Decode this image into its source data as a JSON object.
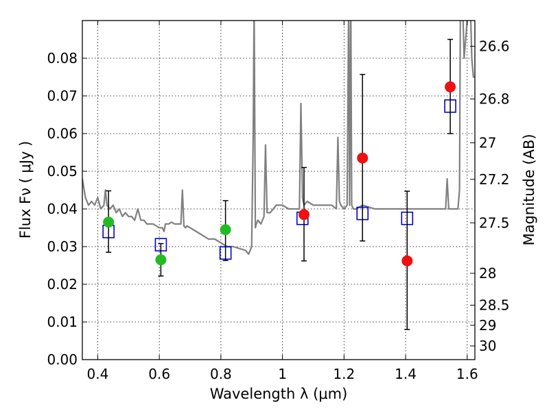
{
  "chart_data": {
    "type": "scatter",
    "xlabel": "Wavelength  λ (μm)",
    "ylabel": "Flux  Fν  ( μJy )",
    "ylabel_right": "Magnitude (AB)",
    "xlim": [
      0.35,
      1.625
    ],
    "ylim": [
      0.0,
      0.09
    ],
    "grid": true,
    "x_ticks": [
      0.4,
      0.6,
      0.8,
      1.0,
      1.2,
      1.4,
      1.6
    ],
    "x_tick_labels": [
      "0.4",
      "0.6",
      "0.8",
      "1",
      "1.2",
      "1.4",
      "1.6"
    ],
    "y_ticks": [
      0.0,
      0.01,
      0.02,
      0.03,
      0.04,
      0.05,
      0.06,
      0.07,
      0.08
    ],
    "y_tick_labels": [
      "0.00",
      "0.01",
      "0.02",
      "0.03",
      "0.04",
      "0.05",
      "0.06",
      "0.07",
      "0.08"
    ],
    "mag_ticks": [
      26.6,
      26.8,
      27.0,
      27.2,
      27.5,
      28.0,
      28.5,
      29.0,
      30.0
    ],
    "mag_tick_labels": [
      "26.6",
      "26.8",
      "27",
      "27.2",
      "27.5",
      "28",
      "28.5",
      "29",
      "30"
    ],
    "series": [
      {
        "name": "spectrum",
        "kind": "line",
        "color": "#808080",
        "x": [
          0.35,
          0.36,
          0.37,
          0.38,
          0.39,
          0.4,
          0.41,
          0.42,
          0.425,
          0.43,
          0.44,
          0.45,
          0.46,
          0.47,
          0.48,
          0.49,
          0.5,
          0.51,
          0.52,
          0.53,
          0.54,
          0.55,
          0.56,
          0.57,
          0.58,
          0.59,
          0.6,
          0.61,
          0.615,
          0.62,
          0.63,
          0.64,
          0.65,
          0.66,
          0.67,
          0.675,
          0.68,
          0.685,
          0.69,
          0.7,
          0.72,
          0.74,
          0.76,
          0.78,
          0.8,
          0.82,
          0.84,
          0.86,
          0.88,
          0.89,
          0.9,
          0.905,
          0.908,
          0.912,
          0.915,
          0.92,
          0.93,
          0.94,
          0.945,
          0.95,
          0.96,
          0.98,
          1.0,
          1.02,
          1.04,
          1.055,
          1.06,
          1.065,
          1.07,
          1.08,
          1.1,
          1.12,
          1.14,
          1.16,
          1.175,
          1.18,
          1.185,
          1.19,
          1.2,
          1.21,
          1.215,
          1.218,
          1.222,
          1.225,
          1.23,
          1.24,
          1.26,
          1.3,
          1.35,
          1.4,
          1.45,
          1.5,
          1.52,
          1.53,
          1.535,
          1.54,
          1.55,
          1.56,
          1.57,
          1.575,
          1.578,
          1.585,
          1.59,
          1.6,
          1.61,
          1.615,
          1.62,
          1.625
        ],
        "y": [
          0.048,
          0.043,
          0.041,
          0.042,
          0.041,
          0.043,
          0.04,
          0.041,
          0.045,
          0.041,
          0.04,
          0.041,
          0.039,
          0.04,
          0.038,
          0.039,
          0.038,
          0.038,
          0.037,
          0.04,
          0.037,
          0.037,
          0.036,
          0.036,
          0.036,
          0.0355,
          0.035,
          0.035,
          0.034,
          0.036,
          0.036,
          0.0365,
          0.036,
          0.036,
          0.036,
          0.045,
          0.0355,
          0.035,
          0.0355,
          0.035,
          0.034,
          0.033,
          0.032,
          0.032,
          0.031,
          0.03,
          0.03,
          0.0295,
          0.029,
          0.028,
          0.03,
          0.06,
          0.095,
          0.035,
          0.036,
          0.037,
          0.036,
          0.038,
          0.057,
          0.039,
          0.039,
          0.041,
          0.041,
          0.04,
          0.04,
          0.04,
          0.068,
          0.043,
          0.041,
          0.042,
          0.041,
          0.041,
          0.041,
          0.041,
          0.04,
          0.059,
          0.042,
          0.041,
          0.04,
          0.041,
          0.095,
          0.041,
          0.095,
          0.041,
          0.04,
          0.04,
          0.041,
          0.04,
          0.04,
          0.04,
          0.04,
          0.04,
          0.04,
          0.04,
          0.048,
          0.04,
          0.04,
          0.04,
          0.04,
          0.045,
          0.095,
          0.095,
          0.08,
          0.09,
          0.095,
          0.08,
          0.075,
          0.075
        ]
      },
      {
        "name": "model_photometry",
        "kind": "open-square",
        "color": "#0000cc",
        "x": [
          0.435,
          0.605,
          0.815,
          1.065,
          1.26,
          1.405,
          1.545
        ],
        "y": [
          0.034,
          0.0305,
          0.0283,
          0.0375,
          0.0388,
          0.0375,
          0.0673
        ]
      },
      {
        "name": "observed_green",
        "kind": "filled-circle",
        "color": "#22bb22",
        "x": [
          0.435,
          0.605,
          0.815
        ],
        "y": [
          0.0365,
          0.0265,
          0.0345
        ],
        "yerr_low": [
          0.0285,
          0.0222,
          0.0263
        ],
        "yerr_high": [
          0.0448,
          0.0308,
          0.0422
        ]
      },
      {
        "name": "observed_red",
        "kind": "filled-circle",
        "color": "#ee1111",
        "x": [
          1.07,
          1.26,
          1.405,
          1.545
        ],
        "y": [
          0.0385,
          0.0535,
          0.0262,
          0.0724
        ],
        "yerr_low": [
          0.0262,
          0.0315,
          0.008,
          0.06
        ],
        "yerr_high": [
          0.051,
          0.0757,
          0.0447,
          0.085
        ]
      }
    ]
  }
}
